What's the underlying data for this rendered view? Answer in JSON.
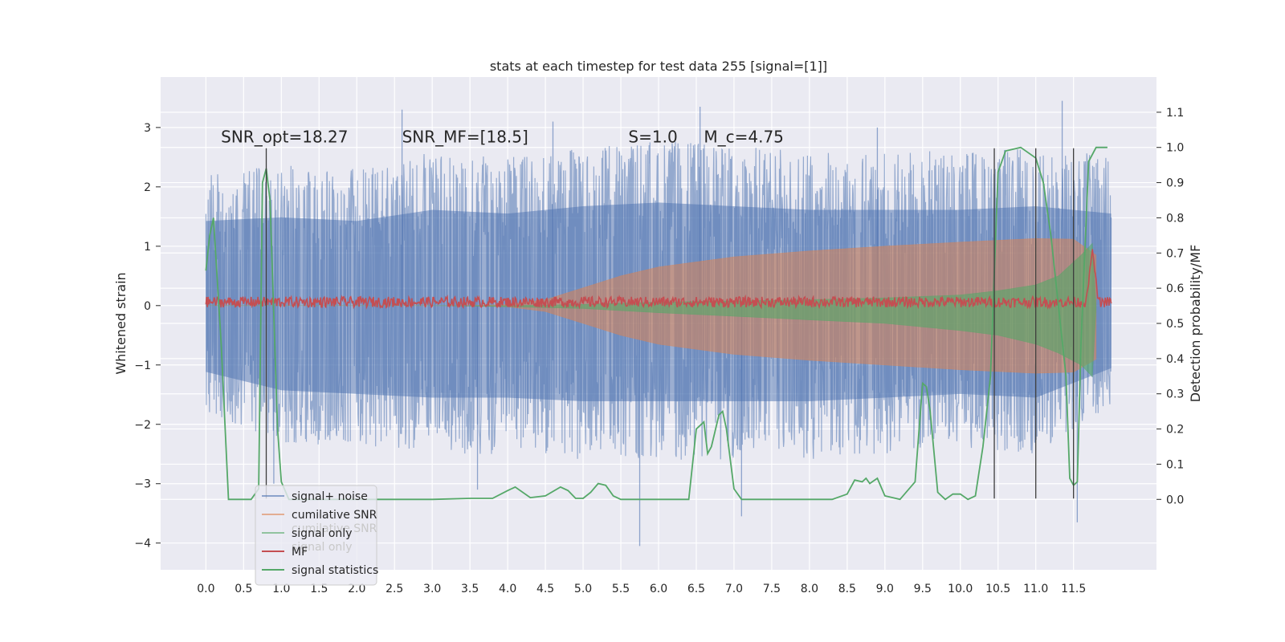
{
  "chart_data": {
    "type": "line",
    "title": "stats at each timestep for test data 255 [signal=[1]]",
    "xlabel": "",
    "ylabel": "Whitened strain",
    "y2label": "Detection probability/MF",
    "xlim": [
      -0.6,
      12.6
    ],
    "ylim": [
      -4.45,
      3.85
    ],
    "y2lim": [
      -0.2,
      1.2
    ],
    "xticks": [
      0.0,
      0.5,
      1.0,
      1.5,
      2.0,
      2.5,
      3.0,
      3.5,
      4.0,
      4.5,
      5.0,
      5.5,
      6.0,
      6.5,
      7.0,
      7.5,
      8.0,
      8.5,
      9.0,
      9.5,
      10.0,
      10.5,
      11.0,
      11.5
    ],
    "xtick_labels": [
      "0.0",
      "0.5",
      "1.0",
      "1.5",
      "2.0",
      "2.5",
      "3.0",
      "3.5",
      "4.0",
      "4.5",
      "5.0",
      "5.5",
      "6.0",
      "6.5",
      "7.0",
      "7.5",
      "8.0",
      "8.5",
      "9.0",
      "9.5",
      "10.0",
      "10.5",
      "11.0",
      "11.5"
    ],
    "yticks": [
      3,
      2,
      1,
      0,
      -1,
      -2,
      -3,
      -4
    ],
    "ytick_labels": [
      "3",
      "2",
      "1",
      "0",
      "−1",
      "−2",
      "−3",
      "−4"
    ],
    "y2ticks": [
      1.1,
      1.0,
      0.9,
      0.8,
      0.7,
      0.6,
      0.5,
      0.4,
      0.3,
      0.2,
      0.1,
      0.0
    ],
    "y2tick_labels": [
      "1.1",
      "1.0",
      "0.9",
      "0.8",
      "0.7",
      "0.6",
      "0.5",
      "0.4",
      "0.3",
      "0.2",
      "0.1",
      "0.0"
    ],
    "grid": true,
    "legend_position": "lower-left",
    "annotations": [
      {
        "text": "SNR_opt=18.27",
        "x": 0.2,
        "y": 2.75
      },
      {
        "text": "SNR_MF=[18.5]",
        "x": 2.6,
        "y": 2.75
      },
      {
        "text": "S=1.0",
        "x": 5.6,
        "y": 2.75
      },
      {
        "text": "M_c=4.75",
        "x": 6.6,
        "y": 2.75
      }
    ],
    "vlines_x": [
      0.8,
      10.45,
      11.0,
      11.5
    ],
    "vlines_yrange": [
      -3.25,
      2.65
    ],
    "series": [
      {
        "name": "signal+ noise",
        "color": "#4c72b0",
        "axis": "left",
        "style": "noise",
        "x_range": [
          0.0,
          12.0
        ],
        "envelope": [
          [
            0.0,
            2.3,
            -1.8
          ],
          [
            1.0,
            2.4,
            -2.3
          ],
          [
            2.0,
            2.3,
            -2.4
          ],
          [
            3.0,
            2.6,
            -2.5
          ],
          [
            4.0,
            2.5,
            -2.5
          ],
          [
            5.0,
            2.7,
            -2.6
          ],
          [
            6.0,
            2.8,
            -2.6
          ],
          [
            7.0,
            2.7,
            -2.6
          ],
          [
            8.0,
            2.6,
            -2.6
          ],
          [
            9.0,
            2.6,
            -2.5
          ],
          [
            10.0,
            2.6,
            -2.4
          ],
          [
            11.0,
            2.7,
            -2.5
          ],
          [
            12.0,
            2.5,
            -1.7
          ]
        ],
        "spikes": [
          [
            2.6,
            3.3
          ],
          [
            6.55,
            3.35
          ],
          [
            11.35,
            3.45
          ],
          [
            5.75,
            -4.05
          ],
          [
            7.1,
            -3.55
          ],
          [
            11.55,
            -3.65
          ],
          [
            4.6,
            3.1
          ],
          [
            8.9,
            3.0
          ],
          [
            0.9,
            -3.0
          ],
          [
            3.6,
            -3.1
          ]
        ]
      },
      {
        "name": "cumilative SNR",
        "color": "#dd8452",
        "axis": "left",
        "style": "band",
        "x": [
          0.0,
          2.0,
          3.5,
          4.0,
          4.5,
          5.0,
          5.5,
          6.0,
          7.0,
          8.0,
          9.0,
          10.0,
          11.0,
          11.5,
          11.8
        ],
        "upper": [
          0.0,
          0.0,
          0.0,
          0.02,
          0.1,
          0.3,
          0.5,
          0.65,
          0.82,
          0.92,
          1.0,
          1.07,
          1.13,
          1.12,
          0.85
        ],
        "lower": [
          0.0,
          0.0,
          0.0,
          -0.02,
          -0.1,
          -0.3,
          -0.5,
          -0.65,
          -0.82,
          -0.92,
          -1.0,
          -1.08,
          -1.14,
          -1.12,
          -0.9
        ]
      },
      {
        "name": "signal only",
        "color": "#55a868",
        "axis": "left",
        "style": "band",
        "x": [
          0.0,
          3.0,
          4.0,
          5.0,
          6.0,
          7.0,
          8.0,
          9.0,
          10.0,
          10.5,
          11.0,
          11.3,
          11.6,
          11.75,
          11.8
        ],
        "upper": [
          0.0,
          0.0,
          0.0,
          0.02,
          0.06,
          0.08,
          0.1,
          0.13,
          0.18,
          0.25,
          0.35,
          0.5,
          0.85,
          1.05,
          0.0
        ],
        "lower": [
          0.0,
          0.0,
          -0.02,
          -0.05,
          -0.12,
          -0.18,
          -0.24,
          -0.3,
          -0.42,
          -0.5,
          -0.65,
          -0.8,
          -1.0,
          -1.2,
          -0.05
        ]
      },
      {
        "name": "MF",
        "color": "#c44e52",
        "axis": "left",
        "style": "thick",
        "x_range": [
          0.0,
          12.0
        ],
        "center": 0.06,
        "amplitude": 0.09,
        "peak_x": 11.75,
        "peak_y": 0.95
      },
      {
        "name": "signal statistics",
        "color": "#55a868",
        "axis": "right",
        "style": "line",
        "x": [
          0.0,
          0.05,
          0.1,
          0.2,
          0.3,
          0.4,
          0.6,
          0.7,
          0.75,
          0.8,
          0.85,
          0.95,
          1.0,
          1.1,
          1.2,
          1.5,
          2.0,
          2.5,
          3.0,
          3.5,
          3.8,
          4.0,
          4.1,
          4.3,
          4.5,
          4.7,
          4.8,
          4.9,
          5.0,
          5.1,
          5.2,
          5.3,
          5.4,
          5.5,
          6.0,
          6.4,
          6.5,
          6.6,
          6.65,
          6.7,
          6.8,
          6.85,
          6.9,
          7.0,
          7.1,
          7.5,
          8.0,
          8.3,
          8.5,
          8.6,
          8.7,
          8.75,
          8.8,
          8.9,
          9.0,
          9.2,
          9.4,
          9.5,
          9.55,
          9.6,
          9.7,
          9.8,
          9.9,
          10.0,
          10.1,
          10.2,
          10.3,
          10.4,
          10.5,
          10.6,
          10.8,
          11.0,
          11.1,
          11.2,
          11.3,
          11.4,
          11.45,
          11.5,
          11.55,
          11.6,
          11.7,
          11.8,
          11.95
        ],
        "y": [
          0.65,
          0.75,
          0.8,
          0.45,
          0.0,
          0.0,
          0.0,
          0.03,
          0.9,
          0.94,
          0.85,
          0.2,
          0.05,
          0.0,
          0.0,
          0.0,
          0.0,
          0.0,
          0.0,
          0.003,
          0.003,
          0.025,
          0.035,
          0.005,
          0.01,
          0.035,
          0.025,
          0.003,
          0.003,
          0.02,
          0.045,
          0.04,
          0.01,
          0.0,
          0.0,
          0.0,
          0.2,
          0.22,
          0.13,
          0.15,
          0.24,
          0.25,
          0.2,
          0.03,
          0.0,
          0.0,
          0.0,
          0.0,
          0.015,
          0.055,
          0.05,
          0.06,
          0.045,
          0.06,
          0.01,
          0.0,
          0.05,
          0.33,
          0.32,
          0.25,
          0.02,
          0.0,
          0.015,
          0.015,
          0.0,
          0.01,
          0.15,
          0.35,
          0.93,
          0.99,
          1.0,
          0.97,
          0.9,
          0.75,
          0.55,
          0.35,
          0.06,
          0.04,
          0.05,
          0.45,
          0.96,
          1.0,
          1.0
        ]
      }
    ]
  }
}
